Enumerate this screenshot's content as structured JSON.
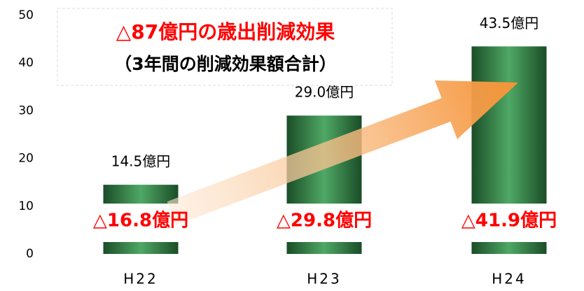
{
  "chart_data": {
    "type": "bar",
    "categories": [
      "H22",
      "H23",
      "H24"
    ],
    "values": [
      14.5,
      29.0,
      43.5
    ],
    "value_labels": [
      "14.5億円",
      "29.0億円",
      "43.5億円"
    ],
    "bar_annotations": [
      "△16.8億円",
      "△29.8億円",
      "△41.9億円"
    ],
    "annotations": [
      "△87億円の歳出削減効果",
      "（3年間の削減効果額合計）"
    ],
    "color": "#2e7a40",
    "ylim": [
      0,
      50
    ],
    "yticks": [
      0,
      10,
      20,
      30,
      40,
      50
    ],
    "grid": false
  }
}
